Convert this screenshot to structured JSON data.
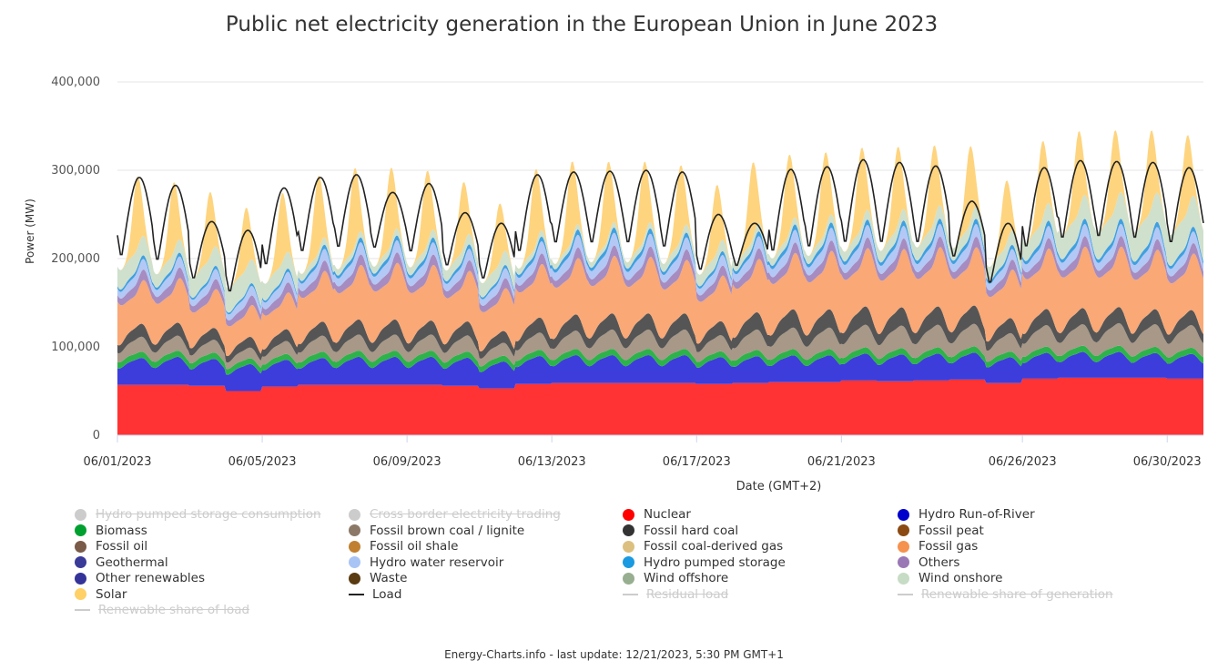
{
  "chart_data": {
    "type": "area",
    "title": "Public net electricity generation in the European Union in June 2023",
    "xlabel": "Date (GMT+2)",
    "ylabel": "Power (MW)",
    "ylim": [
      0,
      400000
    ],
    "yticks": [
      "0",
      "100,000",
      "200,000",
      "300,000",
      "400,000"
    ],
    "xticks": [
      {
        "day": 1,
        "label": "06/01/2023"
      },
      {
        "day": 5,
        "label": "06/05/2023"
      },
      {
        "day": 9,
        "label": "06/09/2023"
      },
      {
        "day": 13,
        "label": "06/13/2023"
      },
      {
        "day": 17,
        "label": "06/17/2023"
      },
      {
        "day": 21,
        "label": "06/21/2023"
      },
      {
        "day": 26,
        "label": "06/26/2023"
      },
      {
        "day": 30,
        "label": "06/30/2023"
      }
    ],
    "days": [
      1,
      2,
      3,
      4,
      5,
      6,
      7,
      8,
      9,
      10,
      11,
      12,
      13,
      14,
      15,
      16,
      17,
      18,
      19,
      20,
      21,
      22,
      23,
      24,
      25,
      26,
      27,
      28,
      29,
      30
    ],
    "stack_order": [
      "Nuclear",
      "Hydro Run-of-River",
      "Biomass",
      "Fossil brown coal / lignite",
      "Fossil hard coal",
      "Fossil gas",
      "Others",
      "Hydro water reservoir",
      "Hydro pumped storage",
      "Wind onshore",
      "Solar"
    ],
    "series": [
      {
        "name": "Nuclear",
        "color": "#ff3333",
        "daily_mean": [
          57000,
          57000,
          56000,
          50000,
          55000,
          57000,
          57000,
          57000,
          57000,
          56000,
          53000,
          58000,
          59000,
          59000,
          59000,
          59000,
          58000,
          59000,
          60000,
          60000,
          62000,
          61000,
          62000,
          63000,
          59000,
          64000,
          65000,
          65000,
          65000,
          64000
        ]
      },
      {
        "name": "Hydro Run-of-River",
        "color": "#3d3ddb",
        "daily_mean": [
          25000,
          26000,
          25000,
          25000,
          25000,
          25000,
          26000,
          26000,
          26000,
          26000,
          25000,
          26000,
          26000,
          26000,
          26000,
          26000,
          25000,
          25000,
          25000,
          25000,
          25000,
          25000,
          25000,
          25000,
          24000,
          24000,
          24000,
          24000,
          23000,
          23000
        ]
      },
      {
        "name": "Biomass",
        "color": "#2db34a",
        "daily_mean": [
          7000,
          7000,
          7000,
          6500,
          6500,
          7000,
          7000,
          7000,
          7000,
          7000,
          6500,
          7000,
          7000,
          7000,
          7000,
          7000,
          6500,
          7000,
          7000,
          7000,
          7000,
          7000,
          7000,
          7000,
          6500,
          7000,
          7000,
          7000,
          7000,
          7000
        ]
      },
      {
        "name": "Fossil brown coal / lignite",
        "color": "#a89888",
        "daily_mean": [
          14000,
          14000,
          12000,
          10000,
          12000,
          15000,
          15000,
          15000,
          15000,
          15000,
          12000,
          16000,
          17000,
          18000,
          18000,
          18000,
          15000,
          19000,
          20000,
          20000,
          21000,
          21000,
          21000,
          21000,
          17000,
          20000,
          20000,
          21000,
          21000,
          21000
        ]
      },
      {
        "name": "Fossil hard coal",
        "color": "#555555",
        "daily_mean": [
          12000,
          12000,
          11000,
          10000,
          11000,
          13000,
          14000,
          14000,
          13000,
          13000,
          11000,
          14000,
          15000,
          15000,
          15000,
          15000,
          13000,
          16000,
          17000,
          17000,
          17000,
          17000,
          17000,
          17000,
          14000,
          15000,
          15000,
          15000,
          14000,
          14000
        ]
      },
      {
        "name": "Fossil gas",
        "color": "#f9a876",
        "daily_mean": [
          45000,
          46000,
          40000,
          33000,
          38000,
          52000,
          56000,
          58000,
          57000,
          52000,
          44000,
          55000,
          58000,
          59000,
          58000,
          55000,
          47000,
          55000,
          58000,
          60000,
          60000,
          60000,
          61000,
          60000,
          50000,
          62000,
          63000,
          62000,
          61000,
          58000
        ]
      },
      {
        "name": "Others",
        "color": "#a68cc0",
        "daily_mean": [
          10000,
          10000,
          9500,
          9000,
          9500,
          10000,
          10000,
          10000,
          10000,
          10000,
          9500,
          10000,
          10000,
          10000,
          10000,
          10000,
          9500,
          10000,
          10000,
          10000,
          10000,
          10000,
          10000,
          10000,
          9500,
          10000,
          10000,
          10000,
          10000,
          10000
        ]
      },
      {
        "name": "Hydro water reservoir",
        "color": "#b3c8f5",
        "daily_mean": [
          10000,
          10500,
          9500,
          9000,
          10000,
          11000,
          11500,
          11500,
          11500,
          11000,
          9500,
          11500,
          12000,
          12000,
          12000,
          11500,
          10000,
          11500,
          12000,
          12000,
          12000,
          12000,
          12000,
          12000,
          10000,
          11500,
          11500,
          11500,
          11500,
          11000
        ]
      },
      {
        "name": "Hydro pumped storage",
        "color": "#3fa0e0",
        "daily_mean": [
          3500,
          3500,
          3000,
          2500,
          3000,
          4000,
          4500,
          4500,
          4500,
          4000,
          3000,
          4500,
          5000,
          5000,
          5000,
          4500,
          3500,
          4500,
          5000,
          5000,
          5000,
          5000,
          5000,
          5000,
          4000,
          5000,
          5000,
          5000,
          5000,
          4500
        ]
      },
      {
        "name": "Wind onshore",
        "color": "#cfe0cd",
        "daily_mean": [
          22000,
          15000,
          22000,
          27000,
          19000,
          8000,
          7000,
          8000,
          9000,
          12000,
          16000,
          7000,
          6000,
          6000,
          7000,
          9000,
          13000,
          9000,
          8000,
          9000,
          11000,
          13000,
          15000,
          14000,
          16000,
          20000,
          27000,
          30000,
          33000,
          35000
        ]
      },
      {
        "name": "Solar",
        "color": "#fed47f",
        "daily_mean": [
          34000,
          33000,
          31000,
          29000,
          33000,
          36000,
          37000,
          36000,
          35000,
          31000,
          28000,
          36000,
          37000,
          36000,
          36000,
          35000,
          32000,
          36000,
          37000,
          37000,
          37000,
          37000,
          36000,
          36000,
          30000,
          37000,
          38000,
          37000,
          37000,
          36000
        ]
      },
      {
        "name": "Load",
        "color": "#222222",
        "peak": [
          292000,
          283000,
          242000,
          232000,
          280000,
          292000,
          295000,
          275000,
          285000,
          252000,
          240000,
          295000,
          298000,
          299000,
          300000,
          298000,
          250000,
          240000,
          301000,
          304000,
          312000,
          309000,
          305000,
          265000,
          240000,
          303000,
          311000,
          310000,
          309000,
          303000
        ],
        "trough": [
          200000,
          195000,
          175000,
          160000,
          190000,
          205000,
          210000,
          210000,
          205000,
          190000,
          175000,
          205000,
          215000,
          215000,
          215000,
          210000,
          185000,
          190000,
          205000,
          210000,
          215000,
          215000,
          215000,
          200000,
          170000,
          210000,
          220000,
          222000,
          220000,
          215000
        ]
      }
    ],
    "legend": [
      {
        "label": "Hydro pumped storage consumption",
        "color": "#cccccc",
        "type": "dot",
        "hidden": true
      },
      {
        "label": "Cross border electricity trading",
        "color": "#cccccc",
        "type": "dot",
        "hidden": true
      },
      {
        "label": "Nuclear",
        "color": "#ff0000",
        "type": "dot",
        "hidden": false
      },
      {
        "label": "Hydro Run-of-River",
        "color": "#0000cc",
        "type": "dot",
        "hidden": false
      },
      {
        "label": "Biomass",
        "color": "#00a030",
        "type": "dot",
        "hidden": false
      },
      {
        "label": "Fossil brown coal / lignite",
        "color": "#8c7866",
        "type": "dot",
        "hidden": false
      },
      {
        "label": "Fossil hard coal",
        "color": "#333333",
        "type": "dot",
        "hidden": false
      },
      {
        "label": "Fossil peat",
        "color": "#8a4a12",
        "type": "dot",
        "hidden": false
      },
      {
        "label": "Fossil oil",
        "color": "#7a5a48",
        "type": "dot",
        "hidden": false
      },
      {
        "label": "Fossil oil shale",
        "color": "#c08030",
        "type": "dot",
        "hidden": false
      },
      {
        "label": "Fossil coal-derived gas",
        "color": "#dcc080",
        "type": "dot",
        "hidden": false
      },
      {
        "label": "Fossil gas",
        "color": "#f5924e",
        "type": "dot",
        "hidden": false
      },
      {
        "label": "Geothermal",
        "color": "#3a3a99",
        "type": "dot",
        "hidden": false
      },
      {
        "label": "Hydro water reservoir",
        "color": "#a8c4f5",
        "type": "dot",
        "hidden": false
      },
      {
        "label": "Hydro pumped storage",
        "color": "#1a9ae0",
        "type": "dot",
        "hidden": false
      },
      {
        "label": "Others",
        "color": "#9a78b5",
        "type": "dot",
        "hidden": false
      },
      {
        "label": "Other renewables",
        "color": "#333399",
        "type": "dot",
        "hidden": false
      },
      {
        "label": "Waste",
        "color": "#5a3a10",
        "type": "dot",
        "hidden": false
      },
      {
        "label": "Wind offshore",
        "color": "#98ae90",
        "type": "dot",
        "hidden": false
      },
      {
        "label": "Wind onshore",
        "color": "#c6dcc4",
        "type": "dot",
        "hidden": false
      },
      {
        "label": "Solar",
        "color": "#ffd066",
        "type": "dot",
        "hidden": false
      },
      {
        "label": "Load",
        "color": "#222222",
        "type": "line",
        "hidden": false
      },
      {
        "label": "Residual load",
        "color": "#cccccc",
        "type": "line",
        "hidden": true
      },
      {
        "label": "Renewable share of generation",
        "color": "#cccccc",
        "type": "line",
        "hidden": true
      },
      {
        "label": "Renewable share of load",
        "color": "#cccccc",
        "type": "line",
        "hidden": true
      }
    ],
    "grid": "horizontal",
    "legend_position": "bottom"
  },
  "footer": {
    "text": "Energy-Charts.info - last update: 12/21/2023, 5:30 PM GMT+1"
  }
}
